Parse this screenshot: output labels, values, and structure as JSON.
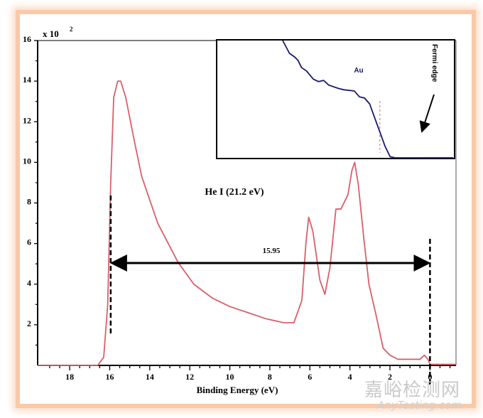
{
  "chart_data": {
    "type": "line",
    "xlabel": "Binding Energy (eV)",
    "ylabel": "",
    "y_multiplier_label": "x 10",
    "y_multiplier_exp": "2",
    "xlim": [
      19.6,
      -1.3
    ],
    "ylim": [
      0,
      16
    ],
    "x_ticks": [
      18,
      16,
      14,
      12,
      10,
      8,
      6,
      4,
      2,
      0
    ],
    "y_ticks": [
      2,
      4,
      6,
      8,
      10,
      12,
      14,
      16
    ],
    "series": [
      {
        "name": "He I spectrum",
        "color": "#d9606a",
        "x": [
          19.6,
          16.6,
          16.3,
          16.1,
          15.95,
          15.8,
          15.6,
          15.45,
          15.2,
          14.8,
          14.4,
          13.6,
          12.6,
          11.8,
          10.85,
          10.0,
          9.1,
          8.2,
          7.3,
          6.8,
          6.4,
          6.2,
          6.06,
          5.85,
          5.5,
          5.25,
          5.0,
          4.7,
          4.45,
          4.1,
          3.9,
          3.76,
          3.58,
          3.3,
          3.05,
          2.7,
          2.34,
          2.0,
          1.6,
          1.0,
          0.5,
          0.28,
          0.1,
          0.0,
          -1.3
        ],
        "y": [
          0,
          0,
          0.4,
          3.0,
          9.0,
          13.2,
          14.0,
          14.0,
          13.2,
          11.2,
          9.3,
          7.0,
          5.1,
          4.0,
          3.3,
          2.9,
          2.6,
          2.3,
          2.1,
          2.1,
          3.2,
          6.0,
          7.3,
          6.6,
          4.2,
          3.5,
          4.8,
          7.7,
          7.7,
          8.4,
          9.6,
          10.0,
          8.9,
          6.2,
          4.0,
          2.5,
          0.85,
          0.5,
          0.3,
          0.3,
          0.3,
          0.5,
          0.3,
          0.05,
          0.05
        ]
      }
    ],
    "annotations": {
      "source_label": "He I (21.2 eV)",
      "width_label": "15.95",
      "cutoff_energy": 15.95,
      "fermi_energy": 0
    },
    "inset": {
      "label": "Au",
      "arrow_label": "Fermi edge",
      "color": "#1a1a6e",
      "x": [
        0,
        4,
        7,
        9,
        11,
        14,
        18,
        21,
        24,
        27,
        33,
        36,
        42,
        45,
        48,
        51,
        54,
        57,
        60,
        63,
        66,
        69,
        72,
        100
      ],
      "y": [
        100,
        89,
        86,
        83,
        77,
        74,
        67,
        65,
        66,
        62,
        59,
        58,
        57,
        52,
        51,
        46,
        34,
        22,
        10,
        1,
        0,
        0,
        0,
        0
      ],
      "fermi_x": 57
    }
  },
  "watermark": {
    "cn": "嘉峪检测网",
    "en": "AnyTesting.com"
  }
}
